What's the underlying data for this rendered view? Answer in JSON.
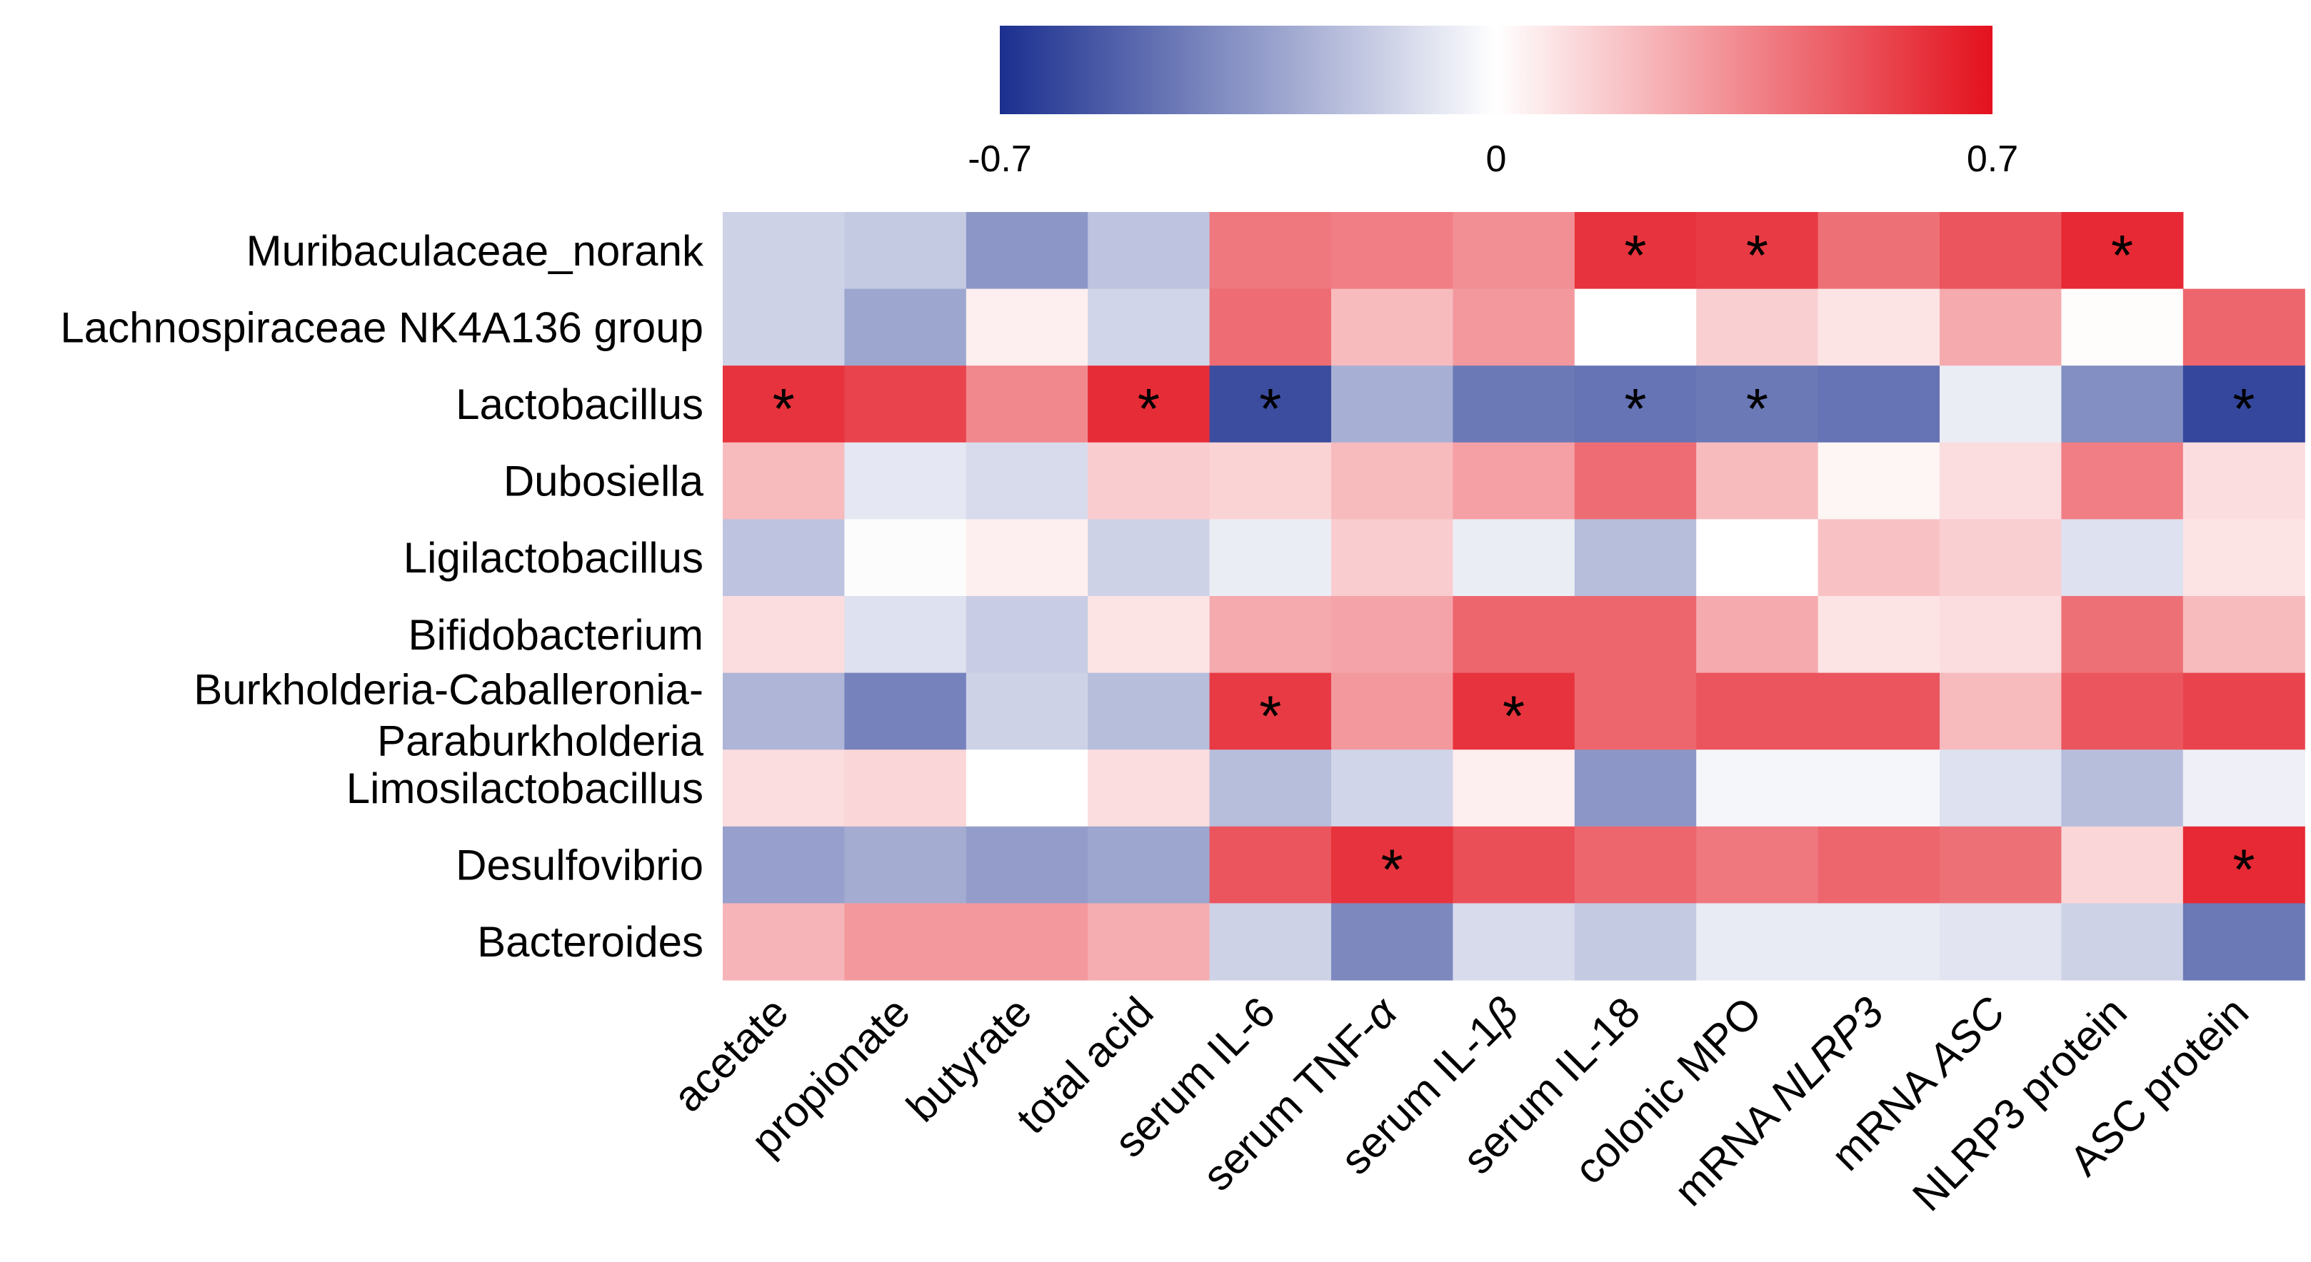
{
  "chart_data": {
    "type": "heatmap",
    "title": "",
    "rows": [
      "Muribaculaceae_norank",
      "Lachnospiraceae NK4A136 group",
      "Lactobacillus",
      "Dubosiella",
      "Ligilactobacillus",
      "Bifidobacterium",
      "Burkholderia-Caballeronia-Paraburkholderia",
      "Limosilactobacillus",
      "Desulfovibrio",
      "Bacteroides"
    ],
    "row_label_lines": [
      [
        "Muribaculaceae_norank"
      ],
      [
        "Lachnospiraceae NK4A136 group"
      ],
      [
        "Lactobacillus"
      ],
      [
        "Dubosiella"
      ],
      [
        "Ligilactobacillus"
      ],
      [
        "Bifidobacterium"
      ],
      [
        "Burkholderia-Caballeronia-",
        "Paraburkholderia"
      ],
      [
        "Limosilactobacillus"
      ],
      [
        "Desulfovibrio"
      ],
      [
        "Bacteroides"
      ]
    ],
    "columns": [
      "acetate",
      "propionate",
      "butyrate",
      "total acid",
      "serum IL-6",
      "serum TNF-α",
      "serum IL-1β",
      "serum IL-18",
      "colonic MPO",
      "mRNA NLRP3",
      "mRNA ASC",
      "NLRP3 protein",
      "ASC protein"
    ],
    "column_label_parts": [
      [
        {
          "t": "acetate",
          "i": false
        }
      ],
      [
        {
          "t": "propionate",
          "i": false
        }
      ],
      [
        {
          "t": "butyrate",
          "i": false
        }
      ],
      [
        {
          "t": "total acid",
          "i": false
        }
      ],
      [
        {
          "t": "serum IL-6",
          "i": false
        }
      ],
      [
        {
          "t": "serum TNF-",
          "i": false
        },
        {
          "t": "α",
          "i": true
        }
      ],
      [
        {
          "t": "serum IL-1",
          "i": false
        },
        {
          "t": "β",
          "i": true
        }
      ],
      [
        {
          "t": "serum IL-18",
          "i": false
        }
      ],
      [
        {
          "t": "colonic MPO",
          "i": false
        }
      ],
      [
        {
          "t": "mRNA ",
          "i": false
        },
        {
          "t": "NLRP3",
          "i": true
        }
      ],
      [
        {
          "t": "mRNA ",
          "i": false
        },
        {
          "t": "ASC",
          "i": true
        }
      ],
      [
        {
          "t": "NLRP3 protein",
          "i": false
        }
      ],
      [
        {
          "t": "ASC protein",
          "i": false
        }
      ]
    ],
    "values": [
      [
        -0.15,
        -0.18,
        -0.35,
        -0.2,
        0.4,
        0.38,
        0.33,
        0.6,
        0.58,
        0.42,
        0.5,
        0.63,
        null
      ],
      [
        -0.15,
        -0.3,
        0.05,
        -0.14,
        0.43,
        0.2,
        0.3,
        0.0,
        0.14,
        0.08,
        0.25,
        0.01,
        0.45
      ],
      [
        0.6,
        0.55,
        0.35,
        0.62,
        -0.6,
        -0.27,
        -0.45,
        -0.47,
        -0.45,
        -0.47,
        -0.06,
        -0.38,
        -0.62
      ],
      [
        0.2,
        -0.08,
        -0.12,
        0.15,
        0.13,
        0.2,
        0.28,
        0.43,
        0.2,
        0.03,
        0.1,
        0.38,
        0.1
      ],
      [
        -0.2,
        -0.01,
        0.05,
        -0.15,
        -0.06,
        0.15,
        -0.06,
        -0.22,
        0.0,
        0.18,
        0.14,
        -0.1,
        0.08
      ],
      [
        0.1,
        -0.1,
        -0.17,
        0.08,
        0.25,
        0.27,
        0.45,
        0.45,
        0.25,
        0.08,
        0.1,
        0.42,
        0.2
      ],
      [
        -0.25,
        -0.42,
        -0.15,
        -0.22,
        0.58,
        0.3,
        0.6,
        0.45,
        0.5,
        0.5,
        0.2,
        0.5,
        0.55
      ],
      [
        0.1,
        0.12,
        0.0,
        0.1,
        -0.22,
        -0.14,
        0.05,
        -0.35,
        -0.03,
        -0.03,
        -0.1,
        -0.22,
        -0.05
      ],
      [
        -0.32,
        -0.28,
        -0.33,
        -0.3,
        0.5,
        0.6,
        0.52,
        0.45,
        0.4,
        0.45,
        0.42,
        0.12,
        0.63
      ],
      [
        0.22,
        0.3,
        0.3,
        0.24,
        -0.15,
        -0.4,
        -0.12,
        -0.18,
        -0.07,
        -0.07,
        -0.09,
        -0.15,
        -0.45
      ]
    ],
    "significant": [
      [
        false,
        false,
        false,
        false,
        false,
        false,
        false,
        true,
        true,
        false,
        false,
        true,
        false
      ],
      [
        false,
        false,
        false,
        false,
        false,
        false,
        false,
        false,
        false,
        false,
        false,
        false,
        false
      ],
      [
        true,
        false,
        false,
        true,
        true,
        false,
        false,
        true,
        true,
        false,
        false,
        false,
        true
      ],
      [
        false,
        false,
        false,
        false,
        false,
        false,
        false,
        false,
        false,
        false,
        false,
        false,
        false
      ],
      [
        false,
        false,
        false,
        false,
        false,
        false,
        false,
        false,
        false,
        false,
        false,
        false,
        false
      ],
      [
        false,
        false,
        false,
        false,
        false,
        false,
        false,
        false,
        false,
        false,
        false,
        false,
        false
      ],
      [
        false,
        false,
        false,
        false,
        true,
        false,
        true,
        false,
        false,
        false,
        false,
        false,
        false
      ],
      [
        false,
        false,
        false,
        false,
        false,
        false,
        false,
        false,
        false,
        false,
        false,
        false,
        false
      ],
      [
        false,
        false,
        false,
        false,
        false,
        true,
        false,
        false,
        false,
        false,
        false,
        false,
        true
      ],
      [
        false,
        false,
        false,
        false,
        false,
        false,
        false,
        false,
        false,
        false,
        false,
        false,
        false
      ]
    ],
    "significance_marker": "*",
    "colorbar": {
      "min": -0.7,
      "mid": 0,
      "max": 0.7,
      "tick_labels": [
        "-0.7",
        "0",
        "0.7"
      ],
      "colors": [
        "#1b2f8f",
        "#ffffff",
        "#e3111d"
      ],
      "placement": "top"
    }
  }
}
